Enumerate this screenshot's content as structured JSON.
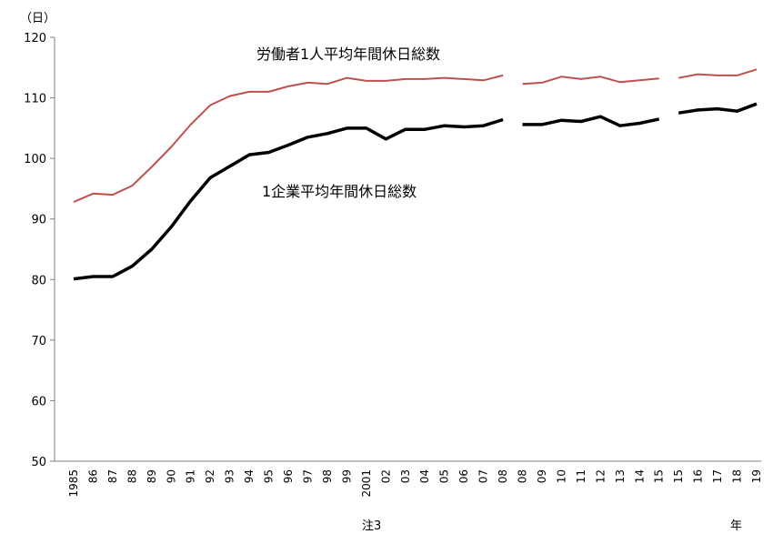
{
  "chart_data": {
    "type": "line",
    "y_unit": "（日）",
    "x_unit": "年",
    "note": "注3",
    "ylim": [
      50,
      120
    ],
    "yticks": [
      50,
      60,
      70,
      80,
      90,
      100,
      110,
      120
    ],
    "grid": false,
    "x_tick_labels": [
      "1985",
      "86",
      "87",
      "88",
      "89",
      "90",
      "91",
      "92",
      "93",
      "94",
      "95",
      "96",
      "97",
      "98",
      "99",
      "2001",
      "02",
      "03",
      "04",
      "05",
      "06",
      "07",
      "08",
      "08",
      "09",
      "10",
      "11",
      "12",
      "13",
      "14",
      "15",
      "15",
      "16",
      "17",
      "18",
      "19"
    ],
    "series": [
      {
        "name": "労働者1人平均年間休日総数",
        "color": "#c0504d",
        "segments": [
          [
            92.8,
            94.2,
            94.0,
            95.5,
            98.6,
            101.9,
            105.6,
            108.8,
            110.3,
            111.0,
            111.0,
            111.9,
            112.5,
            112.3,
            113.3,
            112.8,
            112.8,
            113.1,
            113.1,
            113.3,
            113.1,
            112.9,
            113.7
          ],
          [
            112.3,
            112.5,
            113.5,
            113.1,
            113.5,
            112.6,
            112.9,
            113.2
          ],
          [
            113.3,
            113.9,
            113.7,
            113.7,
            114.7
          ]
        ]
      },
      {
        "name": "1企業平均年間休日総数",
        "color": "#000000",
        "segments": [
          [
            80.1,
            80.5,
            80.5,
            82.2,
            85.0,
            88.7,
            93.0,
            96.8,
            98.7,
            100.6,
            101.0,
            102.2,
            103.5,
            104.1,
            105.0,
            105.0,
            103.2,
            104.8,
            104.8,
            105.4,
            105.2,
            105.4,
            106.4
          ],
          [
            105.6,
            105.6,
            106.3,
            106.1,
            106.9,
            105.4,
            105.8,
            106.5
          ],
          [
            107.5,
            108.0,
            108.2,
            107.8,
            109.0
          ]
        ]
      }
    ]
  }
}
